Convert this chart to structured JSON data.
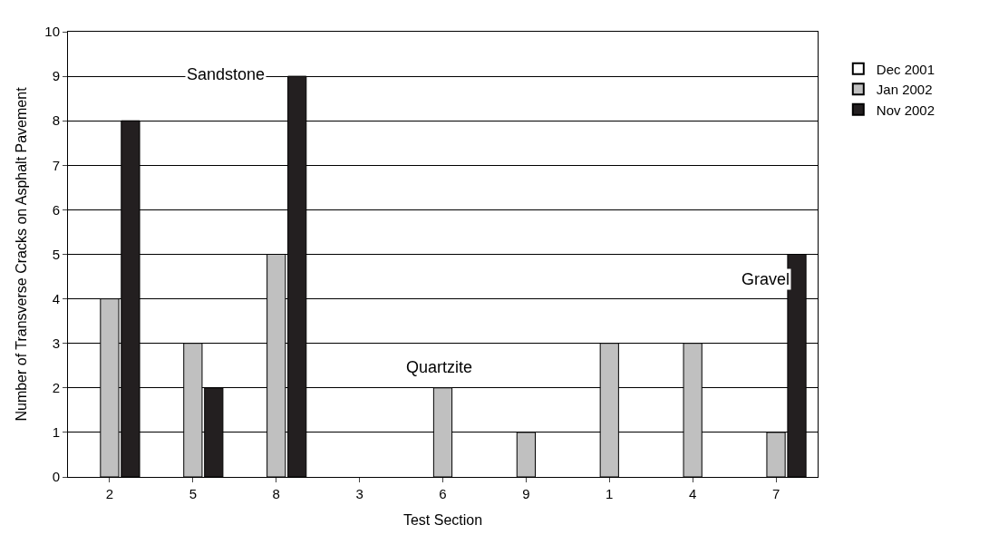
{
  "chart_data": {
    "type": "bar",
    "xlabel": "Test Section",
    "ylabel": "Number of Transverse Cracks on Asphalt Pavement",
    "categories": [
      "2",
      "5",
      "8",
      "3",
      "6",
      "9",
      "1",
      "4",
      "7"
    ],
    "series": [
      {
        "name": "Dec 2001",
        "color": "#ffffff",
        "values": [
          0,
          0,
          0,
          0,
          0,
          0,
          0,
          0,
          0
        ]
      },
      {
        "name": "Jan 2002",
        "color": "#c0c0c0",
        "values": [
          4,
          3,
          5,
          0,
          2,
          1,
          3,
          3,
          1
        ]
      },
      {
        "name": "Nov 2002",
        "color": "#231f20",
        "values": [
          8,
          2,
          9,
          0,
          0,
          0,
          0,
          0,
          5
        ]
      }
    ],
    "ylim": [
      0,
      10
    ],
    "yticks": [
      0,
      1,
      2,
      3,
      4,
      5,
      6,
      7,
      8,
      9,
      10
    ],
    "grid": "y",
    "legend": "top right",
    "annotations": [
      "Sandstone",
      "Quartzite",
      "Gravel"
    ]
  }
}
